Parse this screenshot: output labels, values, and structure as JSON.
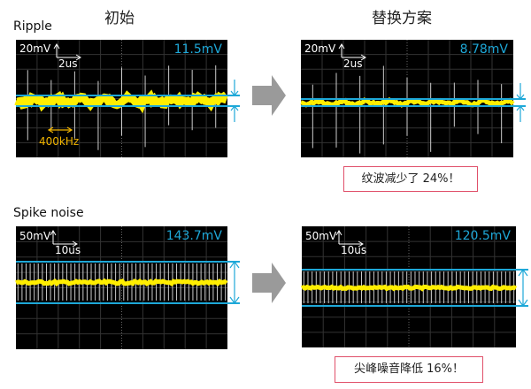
{
  "columns": {
    "before": "初始",
    "after": "替换方案"
  },
  "sections": [
    {
      "label": "Ripple",
      "before": {
        "vscale": "20mV",
        "tscale": "2us",
        "measurement": "11.5mV",
        "frequency": "400kHz"
      },
      "after": {
        "vscale": "20mV",
        "tscale": "2us",
        "measurement": "8.78mV"
      },
      "result": "纹波减少了 24%！"
    },
    {
      "label": "Spike noise",
      "before": {
        "vscale": "50mV",
        "tscale": "10us",
        "measurement": "143.7mV"
      },
      "after": {
        "vscale": "50mV",
        "tscale": "10us",
        "measurement": "120.5mV"
      },
      "result": "尖峰噪音降低 16%！"
    }
  ],
  "colors": {
    "trace": "#ffee00",
    "measure": "#1ea8d8",
    "arrow": "#9a9a9a",
    "note_border": "#e0506a"
  }
}
